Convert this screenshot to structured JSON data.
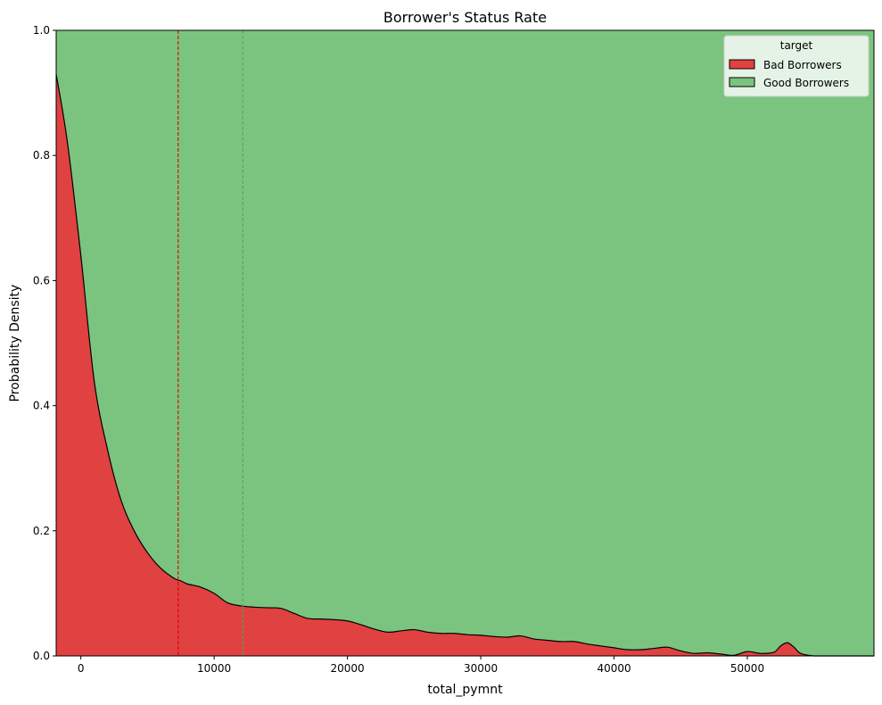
{
  "chart_data": {
    "type": "area",
    "stacked": "fill",
    "title": "Borrower's Status Rate",
    "xlabel": "total_pymnt",
    "ylabel": "Probability Density",
    "xlim": [
      -1850,
      59500
    ],
    "ylim": [
      0,
      1
    ],
    "xticks": [
      0,
      10000,
      20000,
      30000,
      40000,
      50000
    ],
    "yticks": [
      0.0,
      0.2,
      0.4,
      0.6,
      0.8,
      1.0
    ],
    "ytick_labels": [
      "0.0",
      "0.2",
      "0.4",
      "0.6",
      "0.8",
      "1.0"
    ],
    "legend": {
      "title": "target",
      "placement": "top-right",
      "entries": [
        {
          "label": "Bad Borrowers",
          "color": "#e04141"
        },
        {
          "label": "Good Borrowers",
          "color": "#7bc47f"
        }
      ]
    },
    "series": [
      {
        "name": "Bad Borrowers",
        "color": "#e04141",
        "x": [
          -1850,
          -1000,
          0,
          1000,
          2000,
          3000,
          4000,
          5000,
          6000,
          7000,
          7500,
          8000,
          9000,
          10000,
          11000,
          12000,
          13000,
          14000,
          15000,
          16000,
          17000,
          18000,
          19000,
          20000,
          21000,
          22000,
          23000,
          24000,
          25000,
          26000,
          27000,
          28000,
          29000,
          30000,
          31000,
          32000,
          33000,
          34000,
          35000,
          36000,
          37000,
          38000,
          39000,
          40000,
          41000,
          42000,
          43000,
          44000,
          45000,
          46000,
          47000,
          48000,
          49000,
          50000,
          51000,
          52000,
          52500,
          53000,
          53500,
          54000,
          55000,
          56000,
          57000,
          58000,
          59500
        ],
        "values": [
          0.93,
          0.82,
          0.64,
          0.44,
          0.33,
          0.25,
          0.2,
          0.165,
          0.14,
          0.124,
          0.12,
          0.115,
          0.11,
          0.1,
          0.085,
          0.08,
          0.078,
          0.077,
          0.076,
          0.068,
          0.06,
          0.059,
          0.058,
          0.056,
          0.05,
          0.043,
          0.038,
          0.04,
          0.042,
          0.038,
          0.036,
          0.036,
          0.034,
          0.033,
          0.031,
          0.03,
          0.032,
          0.027,
          0.025,
          0.023,
          0.023,
          0.019,
          0.016,
          0.013,
          0.01,
          0.01,
          0.012,
          0.014,
          0.008,
          0.004,
          0.005,
          0.003,
          0.001,
          0.007,
          0.004,
          0.006,
          0.016,
          0.021,
          0.014,
          0.004,
          0.0,
          0.0,
          0.0,
          0.0,
          0.0
        ]
      },
      {
        "name": "Good Borrowers",
        "color": "#7bc47f",
        "fills_to": 1.0
      }
    ],
    "reference_lines": [
      {
        "x": 7300,
        "color": "#e00000",
        "style": "dashed"
      },
      {
        "x": 12150,
        "color": "#4caf50",
        "style": "dashed"
      }
    ]
  }
}
